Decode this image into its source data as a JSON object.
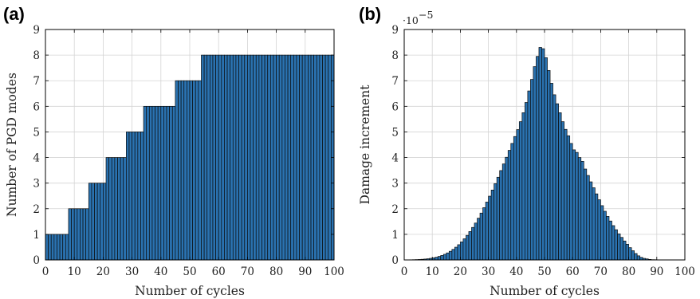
{
  "figure": {
    "panels": [
      {
        "key": "a",
        "label": "(a)"
      },
      {
        "key": "b",
        "label": "(b)"
      }
    ]
  },
  "chart_data": [
    {
      "panel": "(a)",
      "type": "bar",
      "xlabel": "Number of cycles",
      "ylabel": "Number of PGD modes",
      "xlim": [
        0,
        100
      ],
      "ylim": [
        0,
        9
      ],
      "xticks": [
        0,
        10,
        20,
        30,
        40,
        50,
        60,
        70,
        80,
        90,
        100
      ],
      "yticks": [
        0,
        1,
        2,
        3,
        4,
        5,
        6,
        7,
        8,
        9
      ],
      "grid": true,
      "bar_color": "#2a72b0",
      "x_start": 1,
      "x_end": 100,
      "values": [
        1,
        1,
        1,
        1,
        1,
        1,
        1,
        1,
        2,
        2,
        2,
        2,
        2,
        2,
        2,
        3,
        3,
        3,
        3,
        3,
        3,
        4,
        4,
        4,
        4,
        4,
        4,
        4,
        5,
        5,
        5,
        5,
        5,
        5,
        6,
        6,
        6,
        6,
        6,
        6,
        6,
        6,
        6,
        6,
        6,
        7,
        7,
        7,
        7,
        7,
        7,
        7,
        7,
        7,
        8,
        8,
        8,
        8,
        8,
        8,
        8,
        8,
        8,
        8,
        8,
        8,
        8,
        8,
        8,
        8,
        8,
        8,
        8,
        8,
        8,
        8,
        8,
        8,
        8,
        8,
        8,
        8,
        8,
        8,
        8,
        8,
        8,
        8,
        8,
        8,
        8,
        8,
        8,
        8,
        8,
        8,
        8,
        8,
        8,
        8
      ]
    },
    {
      "panel": "(b)",
      "type": "bar",
      "xlabel": "Number of cycles",
      "ylabel": "Damage increment",
      "y_multiplier": "·10",
      "y_exponent": "−5",
      "xlim": [
        0,
        100
      ],
      "ylim": [
        0,
        9
      ],
      "xticks": [
        0,
        10,
        20,
        30,
        40,
        50,
        60,
        70,
        80,
        90,
        100
      ],
      "yticks": [
        0,
        1,
        2,
        3,
        4,
        5,
        6,
        7,
        8,
        9
      ],
      "grid": true,
      "bar_color": "#2a72b0",
      "x_start": 1,
      "x_end": 100,
      "values": [
        0.003,
        0.004,
        0.006,
        0.009,
        0.013,
        0.018,
        0.025,
        0.034,
        0.046,
        0.062,
        0.081,
        0.106,
        0.137,
        0.175,
        0.22,
        0.274,
        0.338,
        0.412,
        0.497,
        0.594,
        0.703,
        0.825,
        0.96,
        1.108,
        1.27,
        1.44,
        1.63,
        1.83,
        2.04,
        2.26,
        2.49,
        2.73,
        2.98,
        3.23,
        3.49,
        3.75,
        4.01,
        4.28,
        4.55,
        4.82,
        5.09,
        5.4,
        5.75,
        6.15,
        6.6,
        7.05,
        7.55,
        7.95,
        8.3,
        8.25,
        7.9,
        7.4,
        6.9,
        6.45,
        6.1,
        5.75,
        5.4,
        5.1,
        4.85,
        4.55,
        4.3,
        4.2,
        4.0,
        3.85,
        3.55,
        3.3,
        3.05,
        2.82,
        2.58,
        2.35,
        2.12,
        1.9,
        1.7,
        1.52,
        1.34,
        1.18,
        1.02,
        0.88,
        0.74,
        0.61,
        0.48,
        0.36,
        0.25,
        0.16,
        0.1,
        0.06,
        0.04,
        0.02,
        0.01,
        0.008,
        0.005,
        0.004,
        0.003,
        0.002,
        0.002,
        0.001,
        0.001,
        0.001,
        0.001,
        0.001
      ]
    }
  ]
}
